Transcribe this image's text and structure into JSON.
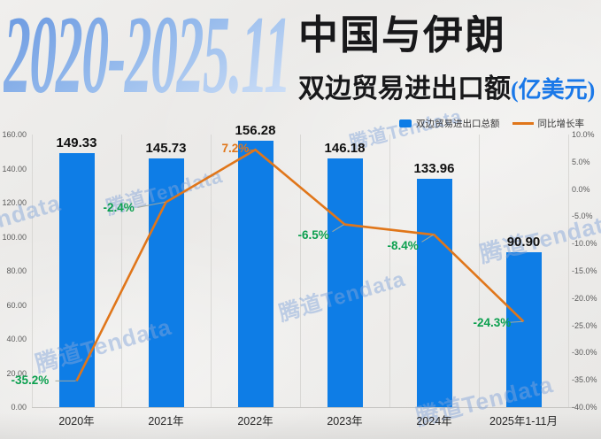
{
  "header": {
    "years": "2020-2025.11",
    "title_main": "中国与伊朗",
    "title_sub": "双边贸易进出口额",
    "unit": "(亿美元)"
  },
  "legend": [
    {
      "label": "双边贸易进出口总额",
      "type": "bar",
      "color": "#0e7de6"
    },
    {
      "label": "同比增长率",
      "type": "line",
      "color": "#e0761a"
    }
  ],
  "watermark": "腾道Tendata",
  "colors": {
    "bar": "#0e7de6",
    "line": "#e0761a",
    "positive_label": "#e0761a",
    "negative_label": "#0ca04f",
    "value_label": "#101010"
  },
  "chart_data": {
    "type": "bar",
    "categories": [
      "2020年",
      "2021年",
      "2022年",
      "2023年",
      "2024年",
      "2025年1-11月"
    ],
    "series": [
      {
        "name": "双边贸易进出口总额",
        "type": "bar",
        "values": [
          149.33,
          145.73,
          156.28,
          146.18,
          133.96,
          90.9
        ],
        "value_labels": [
          "149.33",
          "145.73",
          "156.28",
          "146.18",
          "133.96",
          "90.90"
        ]
      },
      {
        "name": "同比增长率",
        "type": "line",
        "values": [
          -35.2,
          -2.4,
          7.2,
          -6.5,
          -8.4,
          -24.3
        ],
        "value_labels": [
          "-35.2%",
          "-2.4%",
          "7.2%",
          "-6.5%",
          "-8.4%",
          "-24.3%"
        ]
      }
    ],
    "y_left": {
      "min": 0,
      "max": 160,
      "ticks": [
        "160.00",
        "140.00",
        "120.00",
        "100.00",
        "80.00",
        "60.00",
        "40.00",
        "20.00",
        "0.00"
      ]
    },
    "y_right": {
      "min": -40,
      "max": 10,
      "ticks": [
        "10.0%",
        "5.0%",
        "0.0%",
        "-5.0%",
        "-10.0%",
        "-15.0%",
        "-20.0%",
        "-25.0%",
        "-30.0%",
        "-35.0%",
        "-40.0%"
      ]
    },
    "grid": "vertical",
    "legend_position": "top-right",
    "title": "2020-2025.11 中国与伊朗双边贸易进出口额(亿美元)"
  }
}
